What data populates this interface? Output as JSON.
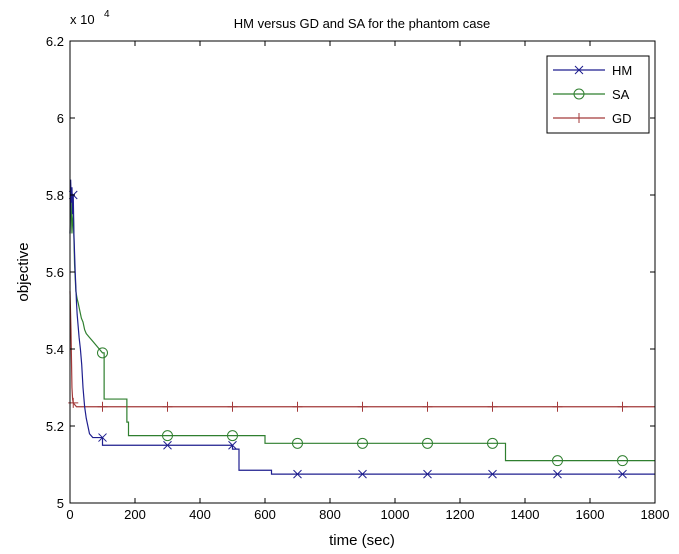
{
  "chart_data": {
    "type": "line",
    "title": "HM versus GD and SA for the phantom case",
    "xlabel": "time (sec)",
    "ylabel": "objective",
    "y_multiplier_label": "x 10",
    "y_multiplier_exponent": "4",
    "xlim": [
      0,
      1800
    ],
    "ylim": [
      5.0,
      6.2
    ],
    "x_ticks": [
      0,
      200,
      400,
      600,
      800,
      1000,
      1200,
      1400,
      1600,
      1800
    ],
    "y_ticks": [
      5,
      5.2,
      5.4,
      5.6,
      5.8,
      6,
      6.2
    ],
    "x_tick_labels": [
      "0",
      "200",
      "400",
      "600",
      "800",
      "1000",
      "1200",
      "1400",
      "1600",
      "1800"
    ],
    "y_tick_labels": [
      "5",
      "5.2",
      "5.4",
      "5.6",
      "5.8",
      "6",
      "6.2"
    ],
    "grid": false,
    "legend_position": "top-right",
    "series": [
      {
        "name": "HM",
        "color": "#1f1f8f",
        "marker": "x",
        "x": [
          0,
          2,
          4,
          6,
          8,
          10,
          12,
          14,
          16,
          18,
          20,
          22,
          25,
          28,
          32,
          36,
          40,
          45,
          50,
          55,
          60,
          70,
          80,
          100,
          100,
          500,
          500,
          520,
          520,
          620,
          620,
          1800
        ],
        "y": [
          5.7,
          5.84,
          5.78,
          5.82,
          5.75,
          5.8,
          5.7,
          5.65,
          5.6,
          5.56,
          5.52,
          5.49,
          5.46,
          5.43,
          5.4,
          5.36,
          5.3,
          5.25,
          5.22,
          5.2,
          5.18,
          5.17,
          5.17,
          5.17,
          5.15,
          5.15,
          5.14,
          5.14,
          5.085,
          5.085,
          5.075,
          5.075
        ],
        "marker_x": [
          10,
          100,
          300,
          500,
          700,
          900,
          1100,
          1300,
          1500,
          1700
        ],
        "marker_y": [
          5.8,
          5.17,
          5.15,
          5.15,
          5.075,
          5.075,
          5.075,
          5.075,
          5.075,
          5.075
        ]
      },
      {
        "name": "SA",
        "color": "#2f7f2f",
        "marker": "o",
        "x": [
          0,
          3,
          6,
          10,
          14,
          18,
          22,
          25,
          30,
          35,
          40,
          45,
          50,
          60,
          70,
          80,
          90,
          100,
          100,
          105,
          105,
          175,
          175,
          180,
          180,
          600,
          600,
          1340,
          1340,
          1800
        ],
        "y": [
          5.7,
          5.8,
          5.7,
          5.76,
          5.62,
          5.55,
          5.53,
          5.52,
          5.5,
          5.48,
          5.47,
          5.45,
          5.44,
          5.43,
          5.42,
          5.41,
          5.4,
          5.39,
          5.39,
          5.39,
          5.27,
          5.27,
          5.21,
          5.21,
          5.175,
          5.175,
          5.155,
          5.155,
          5.11,
          5.11
        ],
        "marker_x": [
          100,
          300,
          500,
          700,
          900,
          1100,
          1300,
          1500,
          1700
        ],
        "marker_y": [
          5.39,
          5.175,
          5.175,
          5.155,
          5.155,
          5.155,
          5.155,
          5.11,
          5.11
        ]
      },
      {
        "name": "GD",
        "color": "#a33a3a",
        "marker": "+",
        "x": [
          0,
          3,
          6,
          8,
          10,
          15,
          20,
          30,
          1800
        ],
        "y": [
          5.55,
          5.45,
          5.3,
          5.27,
          5.26,
          5.255,
          5.25,
          5.25,
          5.25
        ],
        "marker_x": [
          10,
          100,
          300,
          500,
          700,
          900,
          1100,
          1300,
          1500,
          1700
        ],
        "marker_y": [
          5.26,
          5.25,
          5.25,
          5.25,
          5.25,
          5.25,
          5.25,
          5.25,
          5.25,
          5.25
        ]
      }
    ]
  }
}
